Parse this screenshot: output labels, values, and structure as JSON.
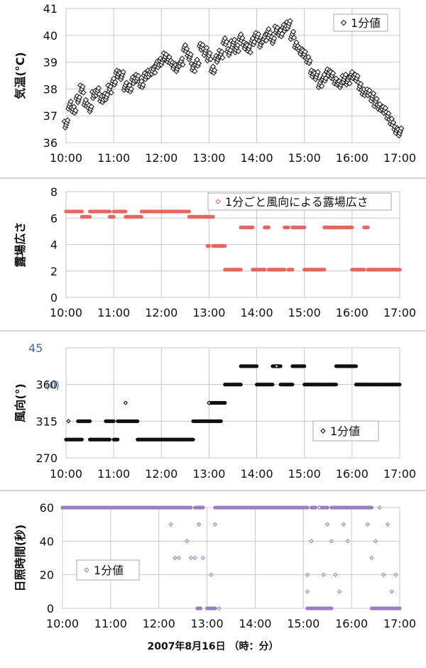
{
  "x_title": "2007年8月16日 （時：分）",
  "chart_data": [
    {
      "type": "scatter",
      "ylabel": "気温(°C)",
      "ylim": [
        36,
        41
      ],
      "yticks": [
        "36",
        "37",
        "38",
        "39",
        "40",
        "41"
      ],
      "xlim": [
        "10:00",
        "17:00"
      ],
      "xticks": [
        "10:00",
        "11:00",
        "12:00",
        "13:00",
        "14:00",
        "15:00",
        "16:00",
        "17:00"
      ],
      "legend": {
        "label": "1分値",
        "position": "top-right"
      },
      "grid": true,
      "series": [
        {
          "name": "1分値",
          "color": "#222222",
          "marker": "diamond-open",
          "points": [
            [
              "10:00",
              36.7
            ],
            [
              "10:05",
              37.4
            ],
            [
              "10:10",
              37.2
            ],
            [
              "10:15",
              37.6
            ],
            [
              "10:20",
              38.0
            ],
            [
              "10:25",
              37.5
            ],
            [
              "10:30",
              37.3
            ],
            [
              "10:35",
              37.8
            ],
            [
              "10:40",
              37.9
            ],
            [
              "10:45",
              37.6
            ],
            [
              "10:50",
              37.7
            ],
            [
              "10:55",
              38.0
            ],
            [
              "11:00",
              38.3
            ],
            [
              "11:05",
              38.6
            ],
            [
              "11:10",
              38.5
            ],
            [
              "11:15",
              38.1
            ],
            [
              "11:20",
              38.0
            ],
            [
              "11:25",
              38.3
            ],
            [
              "11:30",
              38.4
            ],
            [
              "11:35",
              38.2
            ],
            [
              "11:40",
              38.5
            ],
            [
              "11:45",
              38.6
            ],
            [
              "11:50",
              38.7
            ],
            [
              "11:55",
              38.9
            ],
            [
              "12:00",
              39.0
            ],
            [
              "12:05",
              39.2
            ],
            [
              "12:10",
              39.1
            ],
            [
              "12:15",
              38.9
            ],
            [
              "12:20",
              38.8
            ],
            [
              "12:25",
              39.0
            ],
            [
              "12:30",
              39.5
            ],
            [
              "12:35",
              39.2
            ],
            [
              "12:40",
              38.8
            ],
            [
              "12:45",
              39.0
            ],
            [
              "12:50",
              39.6
            ],
            [
              "12:55",
              39.4
            ],
            [
              "13:00",
              39.2
            ],
            [
              "13:05",
              38.7
            ],
            [
              "13:10",
              39.1
            ],
            [
              "13:15",
              39.3
            ],
            [
              "13:20",
              39.8
            ],
            [
              "13:25",
              39.4
            ],
            [
              "13:30",
              39.7
            ],
            [
              "13:35",
              39.5
            ],
            [
              "13:40",
              39.9
            ],
            [
              "13:45",
              39.6
            ],
            [
              "13:50",
              39.5
            ],
            [
              "13:55",
              39.8
            ],
            [
              "14:00",
              40.0
            ],
            [
              "14:05",
              39.7
            ],
            [
              "14:10",
              39.9
            ],
            [
              "14:15",
              40.1
            ],
            [
              "14:20",
              39.8
            ],
            [
              "14:25",
              40.2
            ],
            [
              "14:30",
              40.1
            ],
            [
              "14:35",
              40.3
            ],
            [
              "14:40",
              40.4
            ],
            [
              "14:45",
              40.0
            ],
            [
              "14:50",
              39.6
            ],
            [
              "14:55",
              39.4
            ],
            [
              "15:00",
              39.3
            ],
            [
              "15:05",
              39.1
            ],
            [
              "15:10",
              38.6
            ],
            [
              "15:15",
              38.5
            ],
            [
              "15:20",
              38.2
            ],
            [
              "15:25",
              38.4
            ],
            [
              "15:30",
              38.6
            ],
            [
              "15:35",
              38.5
            ],
            [
              "15:40",
              38.3
            ],
            [
              "15:45",
              38.2
            ],
            [
              "15:50",
              38.4
            ],
            [
              "15:55",
              38.3
            ],
            [
              "16:00",
              38.5
            ],
            [
              "16:05",
              38.4
            ],
            [
              "16:10",
              38.1
            ],
            [
              "16:15",
              37.9
            ],
            [
              "16:20",
              37.9
            ],
            [
              "16:25",
              37.7
            ],
            [
              "16:30",
              37.5
            ],
            [
              "16:35",
              37.3
            ],
            [
              "16:40",
              37.2
            ],
            [
              "16:45",
              37.0
            ],
            [
              "16:50",
              36.8
            ],
            [
              "16:55",
              36.5
            ],
            [
              "17:00",
              36.4
            ]
          ]
        }
      ]
    },
    {
      "type": "scatter",
      "ylabel": "露場広さ",
      "ylim": [
        0,
        8
      ],
      "yticks": [
        "0",
        "2",
        "4",
        "6",
        "8"
      ],
      "xlim": [
        "10:00",
        "17:00"
      ],
      "xticks": [
        "10:00",
        "11:00",
        "12:00",
        "13:00",
        "14:00",
        "15:00",
        "16:00",
        "17:00"
      ],
      "legend": {
        "label": "1分ごと風向による露場広さ",
        "position": "top-right"
      },
      "grid": true,
      "series": [
        {
          "name": "1分ごと風向による露場広さ",
          "color": "#e8655f",
          "marker": "dot",
          "segments": [
            {
              "from": "10:00",
              "to": "10:20",
              "y": 6.5
            },
            {
              "from": "10:20",
              "to": "10:30",
              "y": 6.1
            },
            {
              "from": "10:30",
              "to": "10:55",
              "y": 6.5
            },
            {
              "from": "10:55",
              "to": "11:00",
              "y": 6.1
            },
            {
              "from": "11:00",
              "to": "11:15",
              "y": 6.5
            },
            {
              "from": "11:15",
              "to": "11:35",
              "y": 6.1
            },
            {
              "from": "11:35",
              "to": "12:35",
              "y": 6.5
            },
            {
              "from": "12:35",
              "to": "13:05",
              "y": 6.1
            },
            {
              "from": "12:58",
              "to": "13:00",
              "y": 3.9
            },
            {
              "from": "13:05",
              "to": "13:20",
              "y": 3.9
            },
            {
              "from": "13:20",
              "to": "13:40",
              "y": 2.1
            },
            {
              "from": "13:40",
              "to": "13:55",
              "y": 5.3
            },
            {
              "from": "13:55",
              "to": "14:10",
              "y": 2.1
            },
            {
              "from": "14:10",
              "to": "14:15",
              "y": 5.3
            },
            {
              "from": "14:15",
              "to": "14:35",
              "y": 2.1
            },
            {
              "from": "14:35",
              "to": "14:40",
              "y": 5.3
            },
            {
              "from": "14:40",
              "to": "14:45",
              "y": 2.1
            },
            {
              "from": "14:45",
              "to": "15:00",
              "y": 5.3
            },
            {
              "from": "15:00",
              "to": "15:25",
              "y": 2.1
            },
            {
              "from": "15:25",
              "to": "16:00",
              "y": 5.3
            },
            {
              "from": "16:00",
              "to": "16:15",
              "y": 2.1
            },
            {
              "from": "16:15",
              "to": "16:20",
              "y": 5.3
            },
            {
              "from": "16:20",
              "to": "17:00",
              "y": 2.1
            }
          ]
        }
      ]
    },
    {
      "type": "scatter",
      "ylabel": "風向(°)",
      "ylim": [
        270,
        405
      ],
      "yticks": [
        "270",
        "315",
        "360",
        "45"
      ],
      "ytick_extra": "(0)",
      "xlim": [
        "10:00",
        "17:00"
      ],
      "xticks": [
        "10:00",
        "11:00",
        "12:00",
        "13:00",
        "14:00",
        "15:00",
        "16:00",
        "17:00"
      ],
      "legend": {
        "label": "1分値",
        "position": "bottom-right"
      },
      "grid": true,
      "series": [
        {
          "name": "1分値",
          "color": "#111111",
          "marker": "dot",
          "segments": [
            {
              "from": "10:00",
              "to": "10:20",
              "y": 292.5
            },
            {
              "from": "10:15",
              "to": "10:30",
              "y": 315
            },
            {
              "from": "10:30",
              "to": "10:55",
              "y": 292.5
            },
            {
              "from": "10:50",
              "to": "11:00",
              "y": 315
            },
            {
              "from": "11:00",
              "to": "11:05",
              "y": 292.5
            },
            {
              "from": "11:05",
              "to": "11:30",
              "y": 315
            },
            {
              "from": "11:30",
              "to": "12:40",
              "y": 292.5
            },
            {
              "from": "12:40",
              "to": "13:15",
              "y": 315
            },
            {
              "from": "13:00",
              "to": "13:20",
              "y": 337.5
            },
            {
              "from": "13:20",
              "to": "13:40",
              "y": 360
            },
            {
              "from": "13:40",
              "to": "14:00",
              "y": 382.5
            },
            {
              "from": "14:00",
              "to": "14:20",
              "y": 360
            },
            {
              "from": "14:20",
              "to": "14:30",
              "y": 382.5
            },
            {
              "from": "14:30",
              "to": "14:45",
              "y": 360
            },
            {
              "from": "14:45",
              "to": "15:00",
              "y": 382.5
            },
            {
              "from": "15:00",
              "to": "15:40",
              "y": 360
            },
            {
              "from": "15:40",
              "to": "16:05",
              "y": 382.5
            },
            {
              "from": "16:05",
              "to": "17:00",
              "y": 360
            }
          ],
          "points": [
            [
              "10:03",
              315
            ],
            [
              "11:15",
              337.5
            ],
            [
              "13:00",
              337.5
            ],
            [
              "14:25",
              382.5
            ]
          ]
        }
      ]
    },
    {
      "type": "scatter",
      "ylabel": "日照時間(秒)",
      "ylim": [
        0,
        60
      ],
      "yticks": [
        "0",
        "20",
        "40",
        "60"
      ],
      "xlim": [
        "10:00",
        "17:00"
      ],
      "xticks": [
        "10:00",
        "11:00",
        "12:00",
        "13:00",
        "14:00",
        "15:00",
        "16:00",
        "17:00"
      ],
      "legend": {
        "label": "1分値",
        "position": "bottom-left"
      },
      "grid": true,
      "series": [
        {
          "name": "1分値",
          "color": "#9a7fc0",
          "marker": "dot",
          "segments": [
            {
              "from": "10:00",
              "to": "12:40",
              "y": 60
            },
            {
              "from": "12:45",
              "to": "12:55",
              "y": 60
            },
            {
              "from": "13:10",
              "to": "15:05",
              "y": 60
            },
            {
              "from": "15:10",
              "to": "15:15",
              "y": 60
            },
            {
              "from": "15:20",
              "to": "15:30",
              "y": 60
            },
            {
              "from": "15:35",
              "to": "16:25",
              "y": 60
            },
            {
              "from": "12:48",
              "to": "12:52",
              "y": 0
            },
            {
              "from": "13:00",
              "to": "13:10",
              "y": 0
            },
            {
              "from": "15:05",
              "to": "15:35",
              "y": 0
            },
            {
              "from": "16:25",
              "to": "17:00",
              "y": 0
            }
          ],
          "points": [
            [
              "12:15",
              50
            ],
            [
              "12:20",
              30
            ],
            [
              "12:25",
              30
            ],
            [
              "12:35",
              40
            ],
            [
              "12:40",
              30
            ],
            [
              "12:45",
              30
            ],
            [
              "12:50",
              50
            ],
            [
              "12:55",
              30
            ],
            [
              "13:05",
              20
            ],
            [
              "13:10",
              50
            ],
            [
              "13:15",
              0
            ],
            [
              "15:05",
              20
            ],
            [
              "15:05",
              10
            ],
            [
              "15:10",
              40
            ],
            [
              "15:20",
              60
            ],
            [
              "15:25",
              20
            ],
            [
              "15:30",
              50
            ],
            [
              "15:35",
              40
            ],
            [
              "15:40",
              20
            ],
            [
              "15:45",
              10
            ],
            [
              "15:50",
              50
            ],
            [
              "15:55",
              40
            ],
            [
              "16:20",
              50
            ],
            [
              "16:25",
              30
            ],
            [
              "16:30",
              40
            ],
            [
              "16:35",
              60
            ],
            [
              "16:40",
              20
            ],
            [
              "16:45",
              50
            ],
            [
              "16:50",
              10
            ],
            [
              "16:55",
              20
            ]
          ]
        }
      ]
    }
  ]
}
